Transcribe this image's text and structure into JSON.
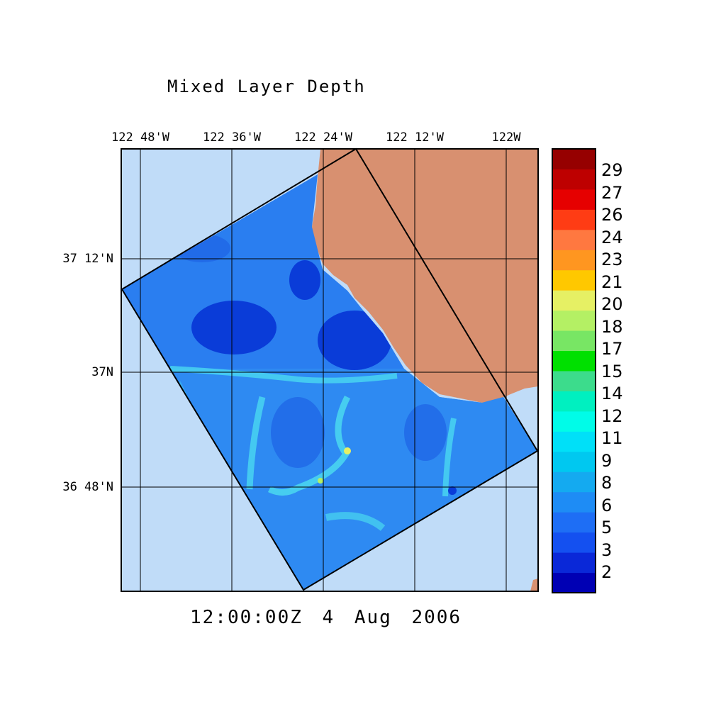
{
  "title": "Mixed Layer Depth",
  "timestamp": "12:00:00Z   4 Aug 2006",
  "longitude_labels": [
    "122 48'W",
    "122 36'W",
    "122 24'W",
    "122 12'W",
    "122W"
  ],
  "latitude_labels": [
    "37 12'N",
    "37N",
    "36 48'N"
  ],
  "colorbar": {
    "labels": [
      "29",
      "27",
      "26",
      "24",
      "23",
      "21",
      "20",
      "18",
      "17",
      "15",
      "14",
      "12",
      "11",
      "9",
      "8",
      "6",
      "5",
      "3",
      "2"
    ],
    "colors": [
      "#0000b4",
      "#0a28d8",
      "#1450f0",
      "#1e6ef5",
      "#1e8cf5",
      "#14aaf0",
      "#00c8f0",
      "#00e0f8",
      "#00fce8",
      "#00f0c0",
      "#3cdc8c",
      "#00e000",
      "#78e664",
      "#b4f064",
      "#e6f064",
      "#ffc800",
      "#ff9620",
      "#ff7840",
      "#ff3c14",
      "#e60000",
      "#be0000",
      "#960000"
    ]
  },
  "colors": {
    "ocean_outside": "#c0dcf8",
    "land": "#d89070",
    "domain_base": "#2a7ef0",
    "deep_patch": "#0a3cd8",
    "shallow_filament": "#4ad8f0"
  }
}
